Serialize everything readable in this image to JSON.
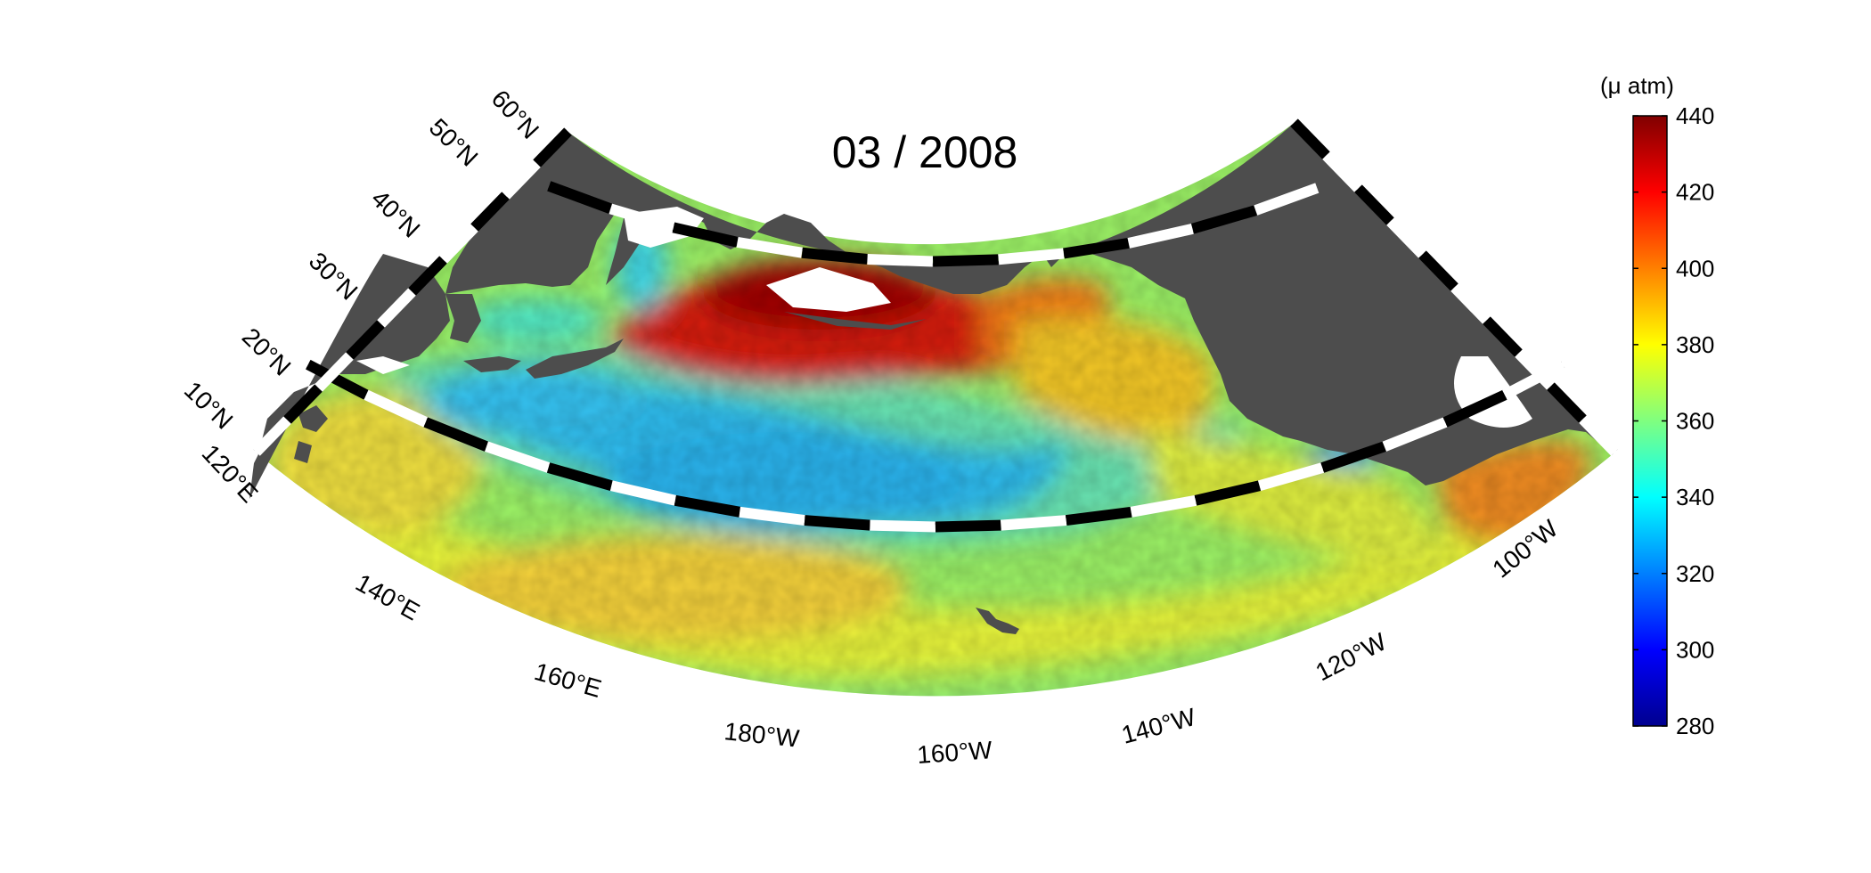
{
  "title": "03 / 2008",
  "colorbar": {
    "unit_label": "(μ atm)",
    "min": 280,
    "max": 440,
    "ticks": [
      "440",
      "420",
      "400",
      "380",
      "360",
      "340",
      "320",
      "300",
      "280"
    ],
    "colormap": "jet"
  },
  "map": {
    "projection": "conic",
    "lat_range": [
      10,
      60
    ],
    "lon_range": [
      "120°E",
      "100°W"
    ],
    "lat_labels": [
      "60°N",
      "50°N",
      "40°N",
      "30°N",
      "20°N",
      "10°N"
    ],
    "lon_labels": [
      "120°E",
      "140°E",
      "160°E",
      "180°W",
      "160°W",
      "140°W",
      "120°W",
      "100°W"
    ],
    "land_color": "#4d4d4d",
    "missing_color": "#ffffff",
    "frame": "black-white checkered border"
  },
  "colors": {
    "jet_dark_red": "#800000",
    "jet_red": "#ff0000",
    "jet_orange": "#ff8000",
    "jet_yellow": "#ffff00",
    "jet_green": "#80ff80",
    "jet_cyan": "#00ffff",
    "jet_blue": "#0080ff",
    "jet_dark_blue": "#00008f"
  }
}
